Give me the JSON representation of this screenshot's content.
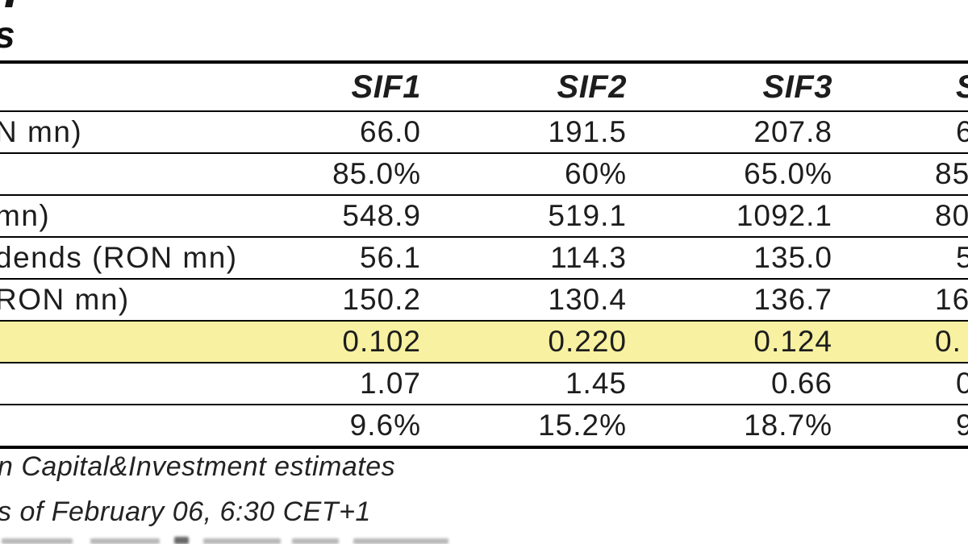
{
  "title": {
    "visible_fragment": "s"
  },
  "table": {
    "columns": [
      "",
      "SIF1",
      "SIF2",
      "SIF3",
      "S"
    ],
    "highlight_color": "#f7f1a1",
    "rows": [
      {
        "label": "N mn)",
        "values": [
          "66.0",
          "191.5",
          "207.8",
          "6"
        ],
        "highlight": false
      },
      {
        "label": "",
        "values": [
          "85.0%",
          "60%",
          "65.0%",
          "85"
        ],
        "highlight": false
      },
      {
        "label": "mn)",
        "values": [
          "548.9",
          "519.1",
          "1092.1",
          "80"
        ],
        "highlight": false
      },
      {
        "label": "dends (RON mn)",
        "values": [
          "56.1",
          "114.3",
          "135.0",
          "5"
        ],
        "highlight": false
      },
      {
        "label": "RON mn)",
        "values": [
          "150.2",
          "130.4",
          "136.7",
          "16"
        ],
        "highlight": false
      },
      {
        "label": "",
        "values": [
          "0.102",
          "0.220",
          "0.124",
          "0."
        ],
        "highlight": true
      },
      {
        "label": "",
        "values": [
          "1.07",
          "1.45",
          "0.66",
          "0"
        ],
        "highlight": false
      },
      {
        "label": "",
        "values": [
          "9.6%",
          "15.2%",
          "18.7%",
          "9"
        ],
        "highlight": false
      }
    ]
  },
  "footnotes": [
    "n Capital&Investment estimates",
    "s of February 06, 6:30 CET+1"
  ]
}
